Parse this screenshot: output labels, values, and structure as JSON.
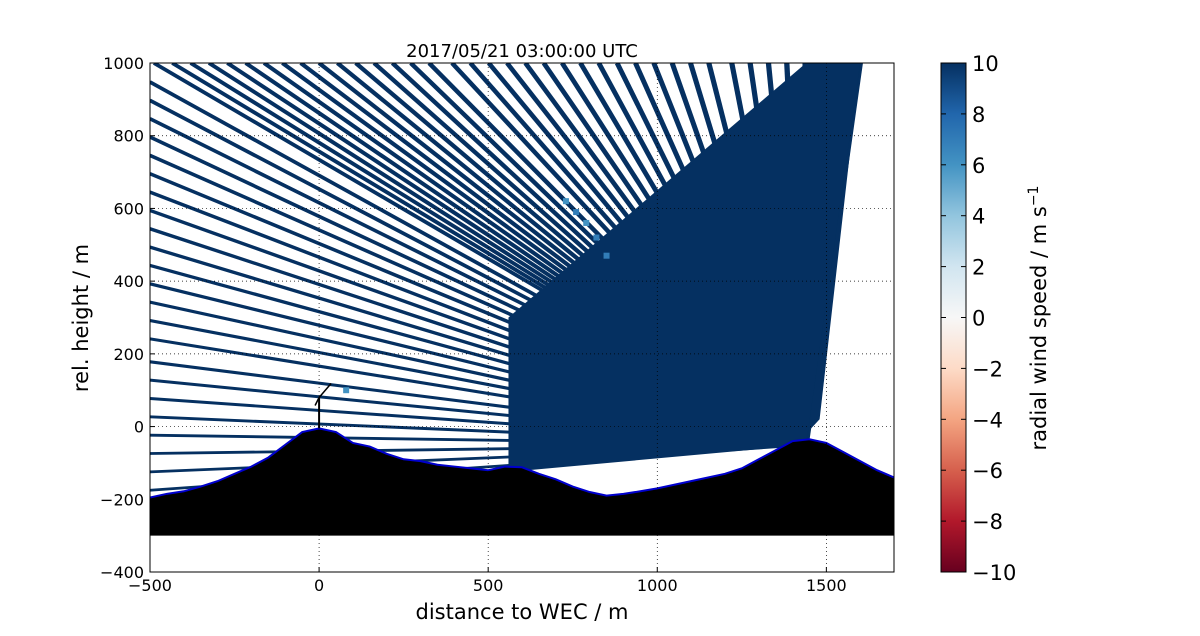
{
  "chart_data": {
    "type": "heatmap",
    "title": "2017/05/21 03:00:00 UTC",
    "xlabel": "distance to WEC / m",
    "ylabel": "rel. height / m",
    "xlim": [
      -500,
      1700
    ],
    "ylim": [
      -400,
      1000
    ],
    "x_ticks": [
      -500,
      0,
      500,
      1000,
      1500
    ],
    "x_tick_labels": [
      "−500",
      "0",
      "500",
      "1000",
      "1500"
    ],
    "y_ticks": [
      -400,
      -200,
      0,
      200,
      400,
      600,
      800,
      1000
    ],
    "y_tick_labels": [
      "−400",
      "−200",
      "0",
      "200",
      "400",
      "600",
      "800",
      "1000"
    ],
    "grid": "dotted",
    "colorbar": {
      "label_main": "radial wind speed / m s",
      "label_exp": "−1",
      "range": [
        -10,
        10
      ],
      "ticks": [
        10,
        8,
        6,
        4,
        2,
        0,
        -2,
        -4,
        -6,
        -8,
        -10
      ],
      "tick_labels": [
        "10",
        "8",
        "6",
        "4",
        "2",
        "0",
        "−2",
        "−4",
        "−6",
        "−8",
        "−10"
      ],
      "colormap": "RdBu",
      "colors": [
        "#67001f",
        "#b2182b",
        "#d6604d",
        "#f4a582",
        "#fddbc7",
        "#f7f7f7",
        "#d1e5f0",
        "#92c5de",
        "#4393c3",
        "#2166ac",
        "#053061"
      ]
    },
    "scan": {
      "lidar_position": [
        1440,
        -50
      ],
      "beam_count": 62,
      "dominant_value": 10,
      "patch_values": [
        7,
        6
      ]
    },
    "terrain": {
      "x": [
        -500,
        -450,
        -400,
        -350,
        -300,
        -250,
        -200,
        -150,
        -100,
        -50,
        0,
        50,
        100,
        150,
        200,
        250,
        300,
        350,
        400,
        450,
        500,
        550,
        600,
        650,
        700,
        750,
        800,
        850,
        900,
        950,
        1000,
        1050,
        1100,
        1150,
        1200,
        1250,
        1300,
        1350,
        1400,
        1450,
        1500,
        1550,
        1600,
        1650,
        1700
      ],
      "height": [
        -195,
        -185,
        -178,
        -165,
        -150,
        -130,
        -110,
        -85,
        -50,
        -15,
        -5,
        -15,
        -45,
        -55,
        -75,
        -90,
        -95,
        -105,
        -110,
        -115,
        -120,
        -110,
        -112,
        -130,
        -145,
        -165,
        -180,
        -190,
        -185,
        -178,
        -170,
        -160,
        -150,
        -140,
        -130,
        -115,
        -90,
        -65,
        -40,
        -35,
        -45,
        -70,
        -95,
        -120,
        -140
      ],
      "floor": -300,
      "fill_color": "#000000",
      "outline_color": "#0000cd"
    },
    "wec": {
      "x": 0,
      "hub_height": 80
    }
  }
}
